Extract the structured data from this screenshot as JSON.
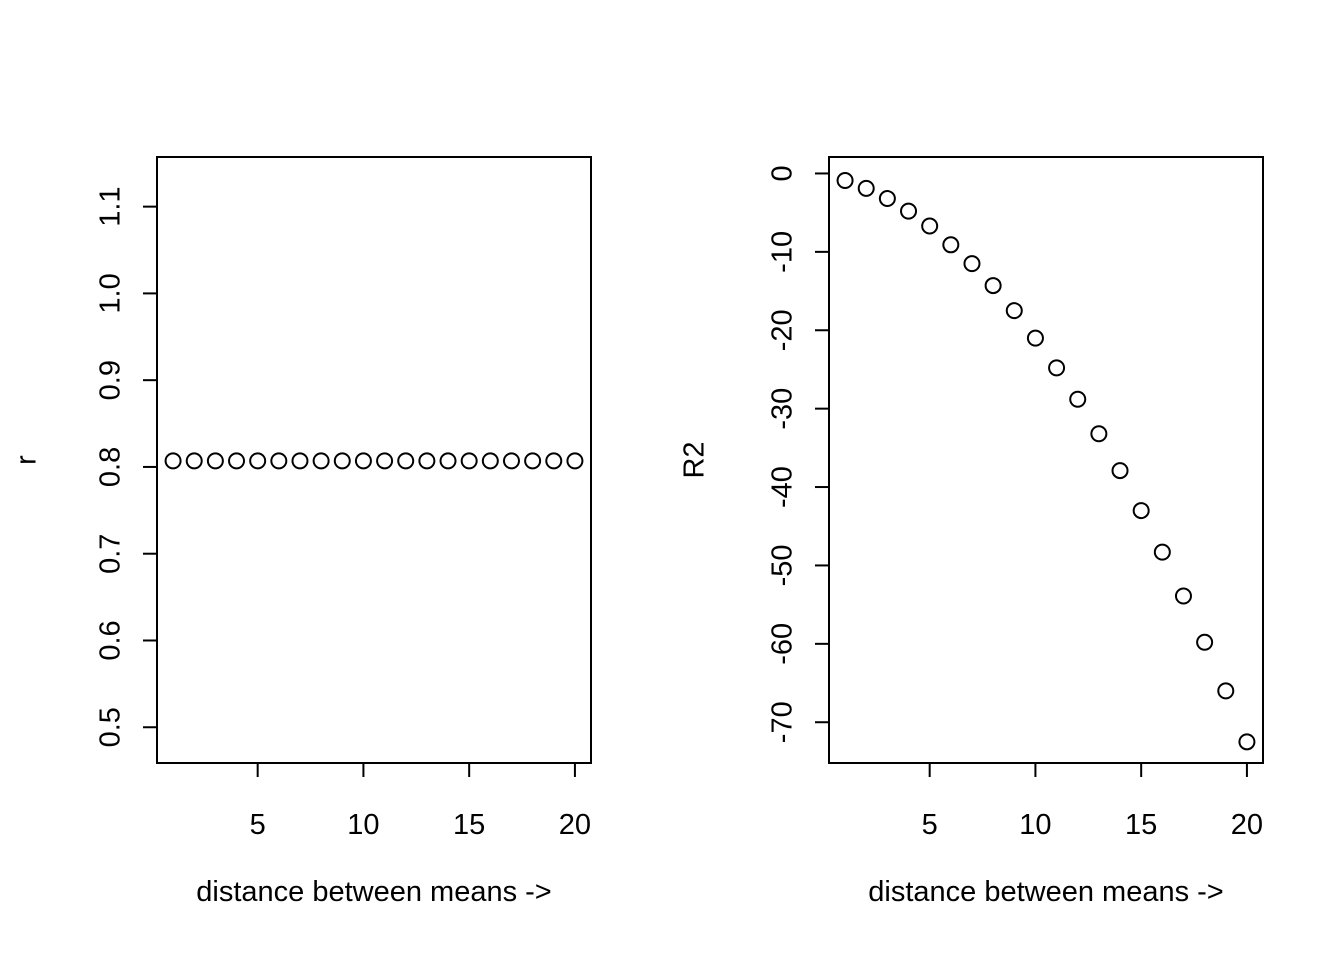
{
  "chart_data": [
    {
      "type": "scatter",
      "title": "",
      "xlabel": "distance between means ->",
      "ylabel": "r",
      "xlim": [
        0.24,
        20.76
      ],
      "ylim": [
        0.4588,
        1.1572
      ],
      "x_ticks": [
        5,
        10,
        15,
        20
      ],
      "x_tick_labels": [
        "5",
        "10",
        "15",
        "20"
      ],
      "y_ticks": [
        0.5,
        0.6,
        0.7,
        0.8,
        0.9,
        1.0,
        1.1
      ],
      "y_tick_labels": [
        "0.5",
        "0.6",
        "0.7",
        "0.8",
        "0.9",
        "1.0",
        "1.1"
      ],
      "grid": false,
      "x": [
        1,
        2,
        3,
        4,
        5,
        6,
        7,
        8,
        9,
        10,
        11,
        12,
        13,
        14,
        15,
        16,
        17,
        18,
        19,
        20
      ],
      "y": [
        0.807,
        0.807,
        0.807,
        0.807,
        0.807,
        0.807,
        0.807,
        0.807,
        0.807,
        0.807,
        0.807,
        0.807,
        0.807,
        0.807,
        0.807,
        0.807,
        0.807,
        0.807,
        0.807,
        0.807
      ]
    },
    {
      "type": "scatter",
      "title": "",
      "xlabel": "distance between means ->",
      "ylabel": "R2",
      "xlim": [
        0.24,
        20.76
      ],
      "ylim": [
        -75.2,
        2.1
      ],
      "x_ticks": [
        5,
        10,
        15,
        20
      ],
      "x_tick_labels": [
        "5",
        "10",
        "15",
        "20"
      ],
      "y_ticks": [
        0,
        -10,
        -20,
        -30,
        -40,
        -50,
        -60,
        -70
      ],
      "y_tick_labels": [
        "0",
        "-10",
        "-20",
        "-30",
        "-40",
        "-50",
        "-60",
        "-70"
      ],
      "grid": false,
      "x": [
        1,
        2,
        3,
        4,
        5,
        6,
        7,
        8,
        9,
        10,
        11,
        12,
        13,
        14,
        15,
        16,
        17,
        18,
        19,
        20
      ],
      "y": [
        -0.9,
        -1.9,
        -3.2,
        -4.8,
        -6.7,
        -9.1,
        -11.5,
        -14.3,
        -17.5,
        -21.0,
        -24.8,
        -28.8,
        -33.2,
        -37.9,
        -43.0,
        -48.3,
        -53.9,
        -59.8,
        -66.0,
        -72.5
      ]
    }
  ]
}
